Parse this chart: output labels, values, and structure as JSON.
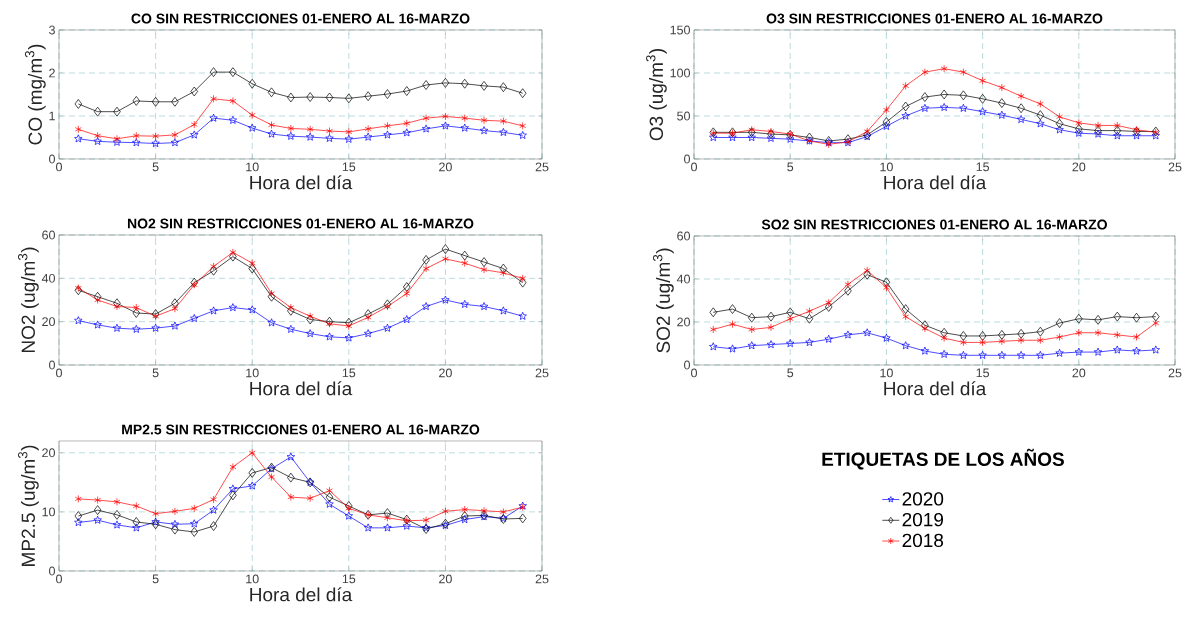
{
  "chart_data": [
    {
      "type": "line",
      "title": "CO SIN RESTRICCIONES 01-ENERO AL 16-MARZO",
      "xlabel": "Hora del día",
      "ylabel": "CO (mg/m$^{3}$)",
      "x": [
        1,
        2,
        3,
        4,
        5,
        6,
        7,
        8,
        9,
        10,
        11,
        12,
        13,
        14,
        15,
        16,
        17,
        18,
        19,
        20,
        21,
        22,
        23,
        24
      ],
      "xlim": [
        0,
        25
      ],
      "xticks": [
        0,
        5,
        10,
        15,
        20,
        25
      ],
      "ylim": [
        0,
        3
      ],
      "yticks": [
        0,
        1,
        2,
        3
      ],
      "grid": true,
      "series": [
        {
          "color": "#0000ff",
          "marker": "star",
          "values": [
            0.47,
            0.41,
            0.39,
            0.38,
            0.36,
            0.38,
            0.56,
            0.95,
            0.9,
            0.72,
            0.58,
            0.53,
            0.51,
            0.48,
            0.46,
            0.51,
            0.56,
            0.61,
            0.7,
            0.77,
            0.72,
            0.66,
            0.62,
            0.55
          ]
        },
        {
          "color": "#000000",
          "marker": "diamond",
          "values": [
            1.28,
            1.1,
            1.1,
            1.35,
            1.33,
            1.33,
            1.57,
            2.02,
            2.02,
            1.75,
            1.55,
            1.43,
            1.44,
            1.43,
            1.41,
            1.46,
            1.51,
            1.58,
            1.72,
            1.77,
            1.75,
            1.7,
            1.67,
            1.53
          ]
        },
        {
          "color": "#ff0000",
          "marker": "cross",
          "values": [
            0.69,
            0.54,
            0.47,
            0.54,
            0.53,
            0.56,
            0.8,
            1.4,
            1.35,
            1.02,
            0.79,
            0.71,
            0.69,
            0.65,
            0.63,
            0.7,
            0.77,
            0.83,
            0.95,
            0.99,
            0.95,
            0.9,
            0.88,
            0.77
          ]
        }
      ]
    },
    {
      "type": "line",
      "title": "O3 SIN RESTRICCIONES 01-ENERO AL 16-MARZO",
      "xlabel": "Hora del día",
      "ylabel": "O3 (ug/m$^{3}$)",
      "x": [
        1,
        2,
        3,
        4,
        5,
        6,
        7,
        8,
        9,
        10,
        11,
        12,
        13,
        14,
        15,
        16,
        17,
        18,
        19,
        20,
        21,
        22,
        23,
        24
      ],
      "xlim": [
        0,
        25
      ],
      "xticks": [
        0,
        5,
        10,
        15,
        20,
        25
      ],
      "ylim": [
        0,
        150
      ],
      "yticks": [
        0,
        50,
        100,
        150
      ],
      "grid": true,
      "series": [
        {
          "color": "#0000ff",
          "marker": "star",
          "values": [
            25,
            25,
            25,
            24,
            23,
            21,
            19,
            19,
            26,
            38,
            50,
            59,
            60,
            59,
            55,
            51,
            46,
            41,
            34,
            30,
            29,
            27,
            27,
            27
          ]
        },
        {
          "color": "#000000",
          "marker": "diamond",
          "values": [
            31,
            31,
            31,
            29,
            28,
            25,
            21,
            23,
            28,
            43,
            61,
            72,
            75,
            74,
            70,
            65,
            59,
            51,
            41,
            35,
            33,
            33,
            32,
            32
          ]
        },
        {
          "color": "#ff0000",
          "marker": "cross",
          "values": [
            30,
            30,
            34,
            32,
            29,
            21,
            17,
            20,
            32,
            57,
            85,
            101,
            105,
            101,
            91,
            83,
            73,
            64,
            49,
            42,
            39,
            39,
            34,
            31
          ]
        }
      ]
    },
    {
      "type": "line",
      "title": "NO2 SIN RESTRICCIONES 01-ENERO AL 16-MARZO",
      "xlabel": "Hora del día",
      "ylabel": "NO2 (ug/m$^{3}$)",
      "x": [
        1,
        2,
        3,
        4,
        5,
        6,
        7,
        8,
        9,
        10,
        11,
        12,
        13,
        14,
        15,
        16,
        17,
        18,
        19,
        20,
        21,
        22,
        23,
        24
      ],
      "xlim": [
        0,
        25
      ],
      "xticks": [
        0,
        5,
        10,
        15,
        20,
        25
      ],
      "ylim": [
        0,
        60
      ],
      "yticks": [
        0,
        20,
        40,
        60
      ],
      "grid": true,
      "series": [
        {
          "color": "#0000ff",
          "marker": "star",
          "values": [
            20.5,
            18.5,
            17,
            16.5,
            17,
            18,
            21.5,
            25,
            26.5,
            25.5,
            19.5,
            16.5,
            14.5,
            13,
            12.5,
            14.5,
            17,
            21,
            27,
            30,
            28,
            27,
            25,
            22.5
          ]
        },
        {
          "color": "#000000",
          "marker": "diamond",
          "values": [
            34.5,
            31.5,
            28.5,
            24,
            23.5,
            28.5,
            38,
            43.5,
            50,
            44.5,
            31.5,
            25,
            21,
            20,
            19.5,
            23.5,
            28,
            36,
            48.5,
            53.5,
            50.5,
            47.5,
            44.5,
            38
          ]
        },
        {
          "color": "#ff0000",
          "marker": "cross",
          "values": [
            35.5,
            30,
            27,
            26.5,
            22.5,
            26,
            37,
            45.5,
            52,
            47,
            33,
            26.5,
            22.5,
            19,
            18,
            22,
            27,
            33,
            44.5,
            49,
            47,
            44,
            42.5,
            40
          ]
        }
      ]
    },
    {
      "type": "line",
      "title": "SO2 SIN RESTRICCIONES 01-ENERO AL 16-MARZO",
      "xlabel": "Hora del día",
      "ylabel": "SO2 (ug/m$^{3}$)",
      "x": [
        1,
        2,
        3,
        4,
        5,
        6,
        7,
        8,
        9,
        10,
        11,
        12,
        13,
        14,
        15,
        16,
        17,
        18,
        19,
        20,
        21,
        22,
        23,
        24
      ],
      "xlim": [
        0,
        25
      ],
      "xticks": [
        0,
        5,
        10,
        15,
        20,
        25
      ],
      "ylim": [
        0,
        60
      ],
      "yticks": [
        0,
        20,
        40,
        60
      ],
      "grid": true,
      "series": [
        {
          "color": "#0000ff",
          "marker": "star",
          "values": [
            8.5,
            7.5,
            9,
            9.5,
            10,
            10.5,
            12,
            14,
            15,
            12.5,
            9,
            6.5,
            5,
            4.5,
            4.5,
            4.5,
            4.5,
            4.5,
            5.5,
            6,
            6,
            7,
            6.5,
            7
          ]
        },
        {
          "color": "#000000",
          "marker": "diamond",
          "values": [
            24.5,
            26,
            22,
            22.5,
            24.5,
            21.5,
            27,
            34.5,
            42,
            38.5,
            26,
            18.5,
            15,
            13.5,
            13.5,
            14,
            14.5,
            15.5,
            19.5,
            21.5,
            21,
            22.5,
            22,
            22.5
          ]
        },
        {
          "color": "#ff0000",
          "marker": "cross",
          "values": [
            16.5,
            19,
            16.5,
            17.5,
            21.5,
            25,
            29,
            37.5,
            44,
            36,
            22.5,
            17,
            12.5,
            10.5,
            10.5,
            11,
            11.5,
            11.5,
            13,
            15,
            15,
            14,
            13,
            19.5
          ]
        }
      ]
    },
    {
      "type": "line",
      "title": "MP2.5 SIN RESTRICCIONES 01-ENERO AL 16-MARZO",
      "xlabel": "Hora del día",
      "ylabel": "MP2.5 (ug/m$^{3}$)",
      "x": [
        1,
        2,
        3,
        4,
        5,
        6,
        7,
        8,
        9,
        10,
        11,
        12,
        13,
        14,
        15,
        16,
        17,
        18,
        19,
        20,
        21,
        22,
        23,
        24
      ],
      "xlim": [
        0,
        25
      ],
      "xticks": [
        0,
        5,
        10,
        15,
        20,
        25
      ],
      "ylim": [
        0,
        22
      ],
      "yticks": [
        0,
        10,
        20
      ],
      "grid": true,
      "legend": "right",
      "legend_title": "ETIQUETAS DE LOS AÑOS",
      "series": [
        {
          "name": "2020",
          "color": "#0000ff",
          "marker": "star",
          "values": [
            8.2,
            8.6,
            7.8,
            7.3,
            8.3,
            7.9,
            8,
            10.3,
            13.9,
            14.4,
            17.3,
            19.3,
            15,
            11.3,
            9.3,
            7.3,
            7.3,
            7.6,
            7.3,
            7.7,
            8.7,
            9.2,
            8.9,
            11
          ]
        },
        {
          "name": "2019",
          "color": "#000000",
          "marker": "diamond",
          "values": [
            9.3,
            10.3,
            9.5,
            8.3,
            7.9,
            7,
            6.6,
            7.6,
            12.8,
            16.6,
            17.5,
            15.8,
            15,
            12.5,
            11,
            9.5,
            9.8,
            8.7,
            7.1,
            8,
            9.3,
            9.4,
            8.8,
            8.9
          ]
        },
        {
          "name": "2018",
          "color": "#ff0000",
          "marker": "cross",
          "values": [
            12.2,
            12,
            11.7,
            11,
            9.7,
            10.1,
            10.6,
            12.1,
            17.6,
            20,
            15.9,
            12.5,
            12.3,
            13.6,
            10.6,
            9.5,
            9,
            8.5,
            8.6,
            10.1,
            10.4,
            10.2,
            10,
            10.8
          ]
        }
      ]
    }
  ]
}
